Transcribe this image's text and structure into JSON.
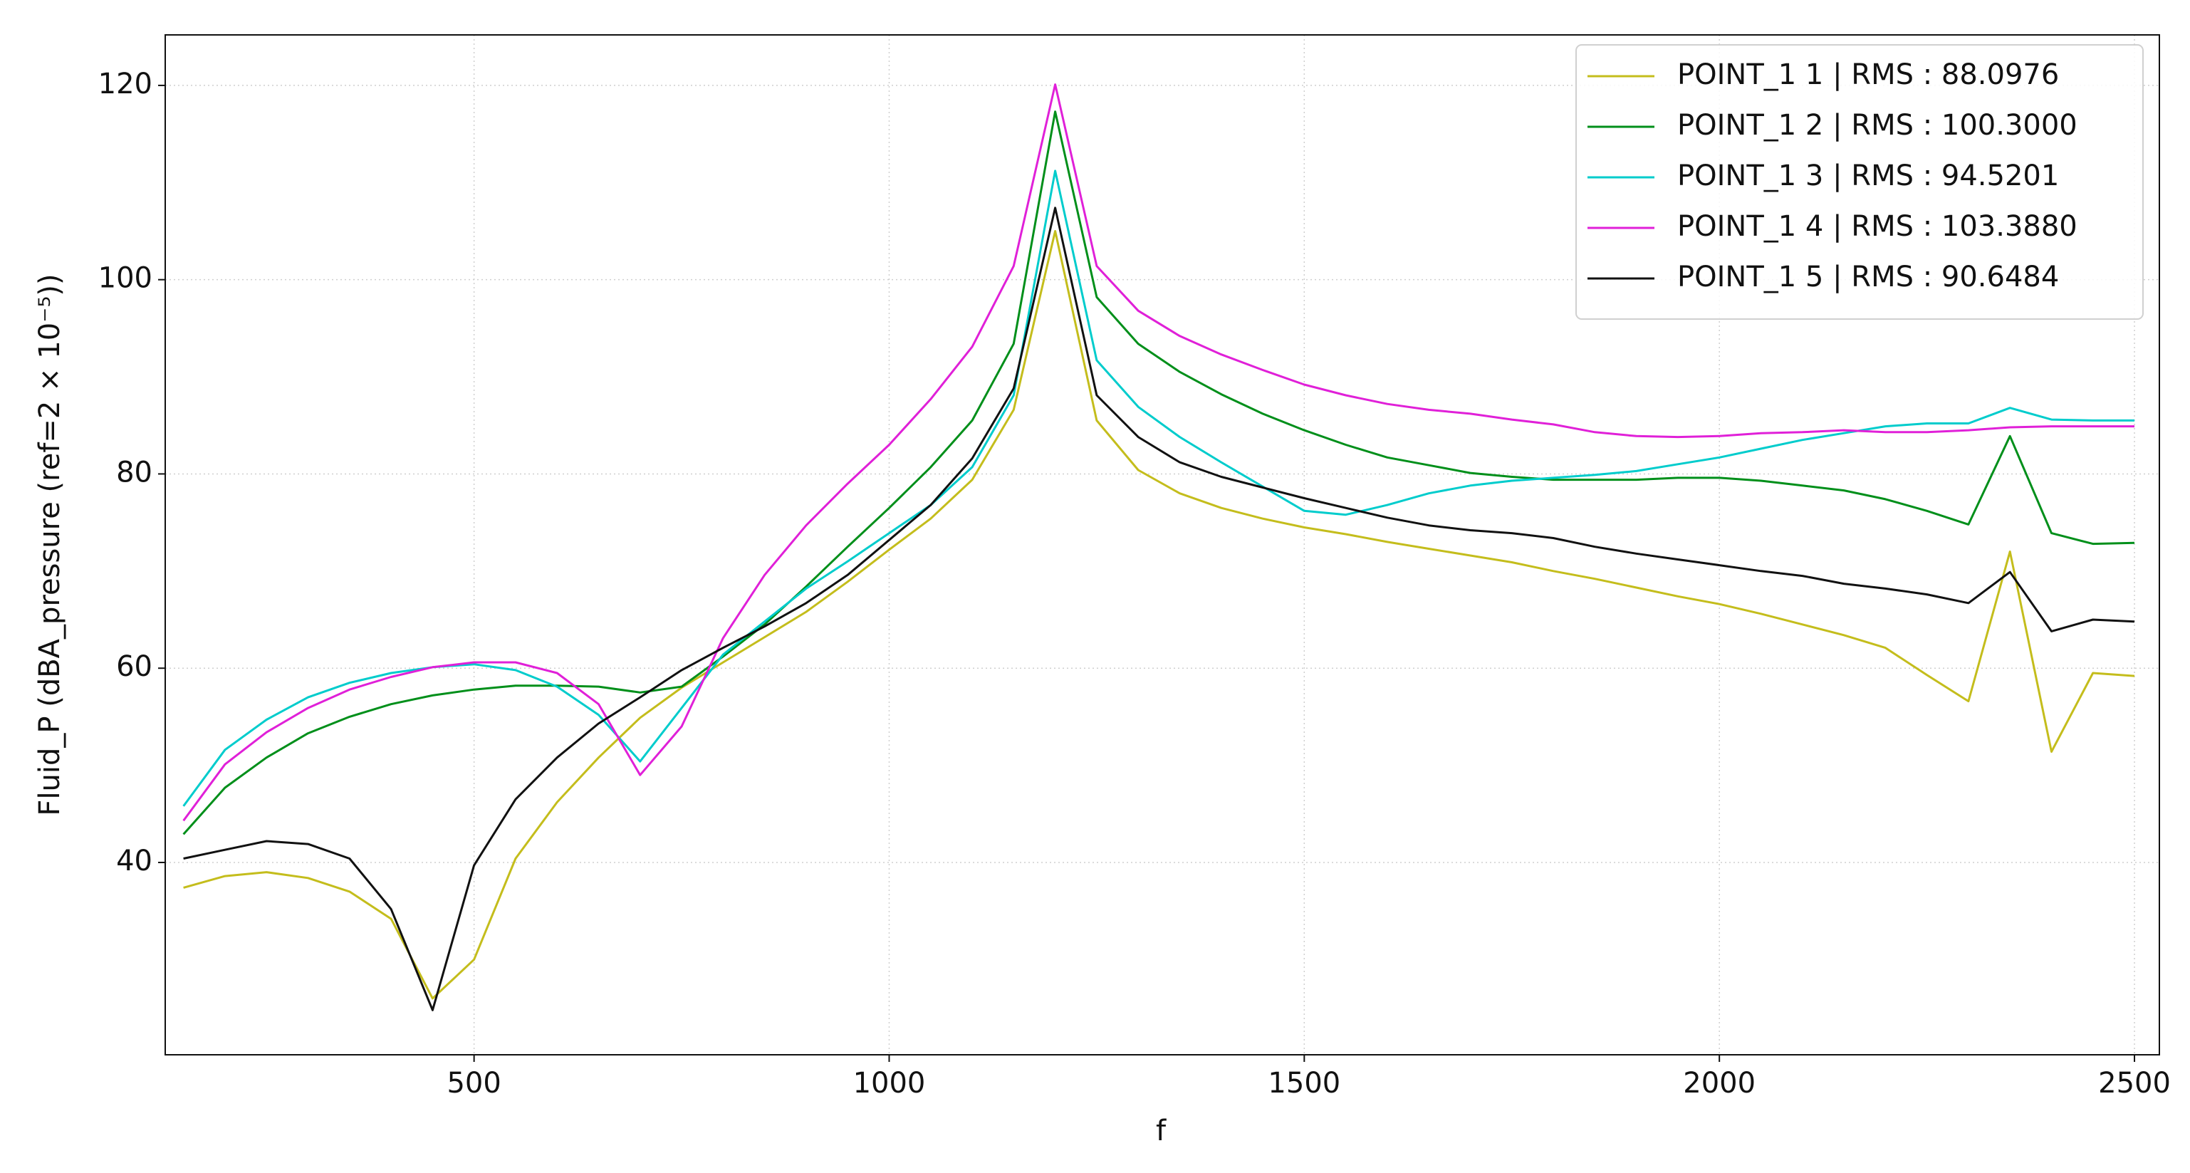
{
  "chart_data": {
    "type": "line",
    "xlabel": "f",
    "ylabel": "Fluid_P (dBA_pressure (ref=2 × 10⁻⁵))",
    "x": [
      150,
      200,
      250,
      300,
      350,
      400,
      450,
      500,
      550,
      600,
      650,
      700,
      750,
      800,
      850,
      900,
      950,
      1000,
      1050,
      1100,
      1150,
      1200,
      1250,
      1300,
      1350,
      1400,
      1450,
      1500,
      1550,
      1600,
      1650,
      1700,
      1750,
      1800,
      1850,
      1900,
      1950,
      2000,
      2050,
      2100,
      2150,
      2200,
      2250,
      2300,
      2350,
      2400,
      2450,
      2500
    ],
    "series": [
      {
        "name": "POINT_1 1 | RMS : 88.0976",
        "color": "#c4bd1c",
        "values": [
          37.4,
          38.6,
          39,
          38.4,
          37,
          34.2,
          26,
          30,
          40.4,
          46.2,
          50.8,
          54.9,
          58,
          60.6,
          63.2,
          65.8,
          68.9,
          72.2,
          75.4,
          79.4,
          86.6,
          105,
          85.5,
          80.4,
          78,
          76.5,
          75.4,
          74.5,
          73.8,
          73,
          72.3,
          71.6,
          70.9,
          70,
          69.2,
          68.3,
          67.4,
          66.6,
          65.6,
          64.5,
          63.4,
          62.1,
          59.3,
          56.6,
          72,
          51.4,
          59.5,
          59.2
        ]
      },
      {
        "name": "POINT_1 2 | RMS : 100.3000",
        "color": "#008f1a",
        "values": [
          42.9,
          47.7,
          50.8,
          53.3,
          55,
          56.3,
          57.2,
          57.8,
          58.2,
          58.2,
          58.1,
          57.5,
          58.1,
          61.2,
          64.5,
          68.4,
          72.5,
          76.5,
          80.7,
          85.5,
          93.4,
          117.3,
          98.2,
          93.4,
          90.5,
          88.2,
          86.2,
          84.5,
          83,
          81.7,
          80.9,
          80.1,
          79.7,
          79.4,
          79.4,
          79.4,
          79.6,
          79.6,
          79.3,
          78.8,
          78.3,
          77.4,
          76.2,
          74.8,
          83.9,
          73.9,
          72.8,
          72.9
        ]
      },
      {
        "name": "POINT_1 3 | RMS : 94.5201",
        "color": "#00cccc",
        "values": [
          45.8,
          51.6,
          54.7,
          57,
          58.5,
          59.5,
          60.1,
          60.4,
          59.8,
          58.1,
          55.2,
          50.4,
          55.9,
          61.4,
          64.8,
          68.2,
          71,
          73.9,
          76.8,
          80.7,
          88.1,
          111.2,
          91.7,
          86.9,
          83.8,
          81.2,
          78.7,
          76.2,
          75.8,
          76.8,
          78,
          78.8,
          79.3,
          79.6,
          79.9,
          80.3,
          81,
          81.7,
          82.6,
          83.5,
          84.2,
          84.9,
          85.2,
          85.2,
          86.8,
          85.6,
          85.5,
          85.5
        ]
      },
      {
        "name": "POINT_1 4 | RMS : 103.3880",
        "color": "#e020d8",
        "values": [
          44.3,
          50.1,
          53.4,
          55.9,
          57.8,
          59.1,
          60.1,
          60.6,
          60.6,
          59.5,
          56.3,
          49,
          54,
          63.1,
          69.6,
          74.7,
          79,
          83,
          87.7,
          93.1,
          101.4,
          120.1,
          101.4,
          96.8,
          94.2,
          92.3,
          90.7,
          89.2,
          88.1,
          87.2,
          86.6,
          86.2,
          85.6,
          85.1,
          84.3,
          83.9,
          83.8,
          83.9,
          84.2,
          84.3,
          84.5,
          84.3,
          84.3,
          84.5,
          84.8,
          84.9,
          84.9,
          84.9
        ]
      },
      {
        "name": "POINT_1 5 | RMS : 90.6484",
        "color": "#111111",
        "values": [
          40.4,
          41.3,
          42.2,
          41.9,
          40.4,
          35.2,
          24.8,
          39.7,
          46.5,
          50.8,
          54.3,
          57,
          59.8,
          62.1,
          64.3,
          66.7,
          69.6,
          73.2,
          76.8,
          81.6,
          88.8,
          107.4,
          88.1,
          83.8,
          81.2,
          79.7,
          78.6,
          77.5,
          76.5,
          75.5,
          74.7,
          74.2,
          73.9,
          73.4,
          72.5,
          71.8,
          71.2,
          70.6,
          70,
          69.5,
          68.7,
          68.2,
          67.6,
          66.7,
          69.9,
          63.8,
          65,
          64.8
        ]
      }
    ],
    "xlim": [
      128,
      2530
    ],
    "ylim": [
      20.2,
      125.2
    ],
    "xticks": [
      500,
      1000,
      1500,
      2000,
      2500
    ],
    "yticks": [
      40,
      60,
      80,
      100,
      120
    ],
    "grid": true,
    "legend": "upper right"
  }
}
